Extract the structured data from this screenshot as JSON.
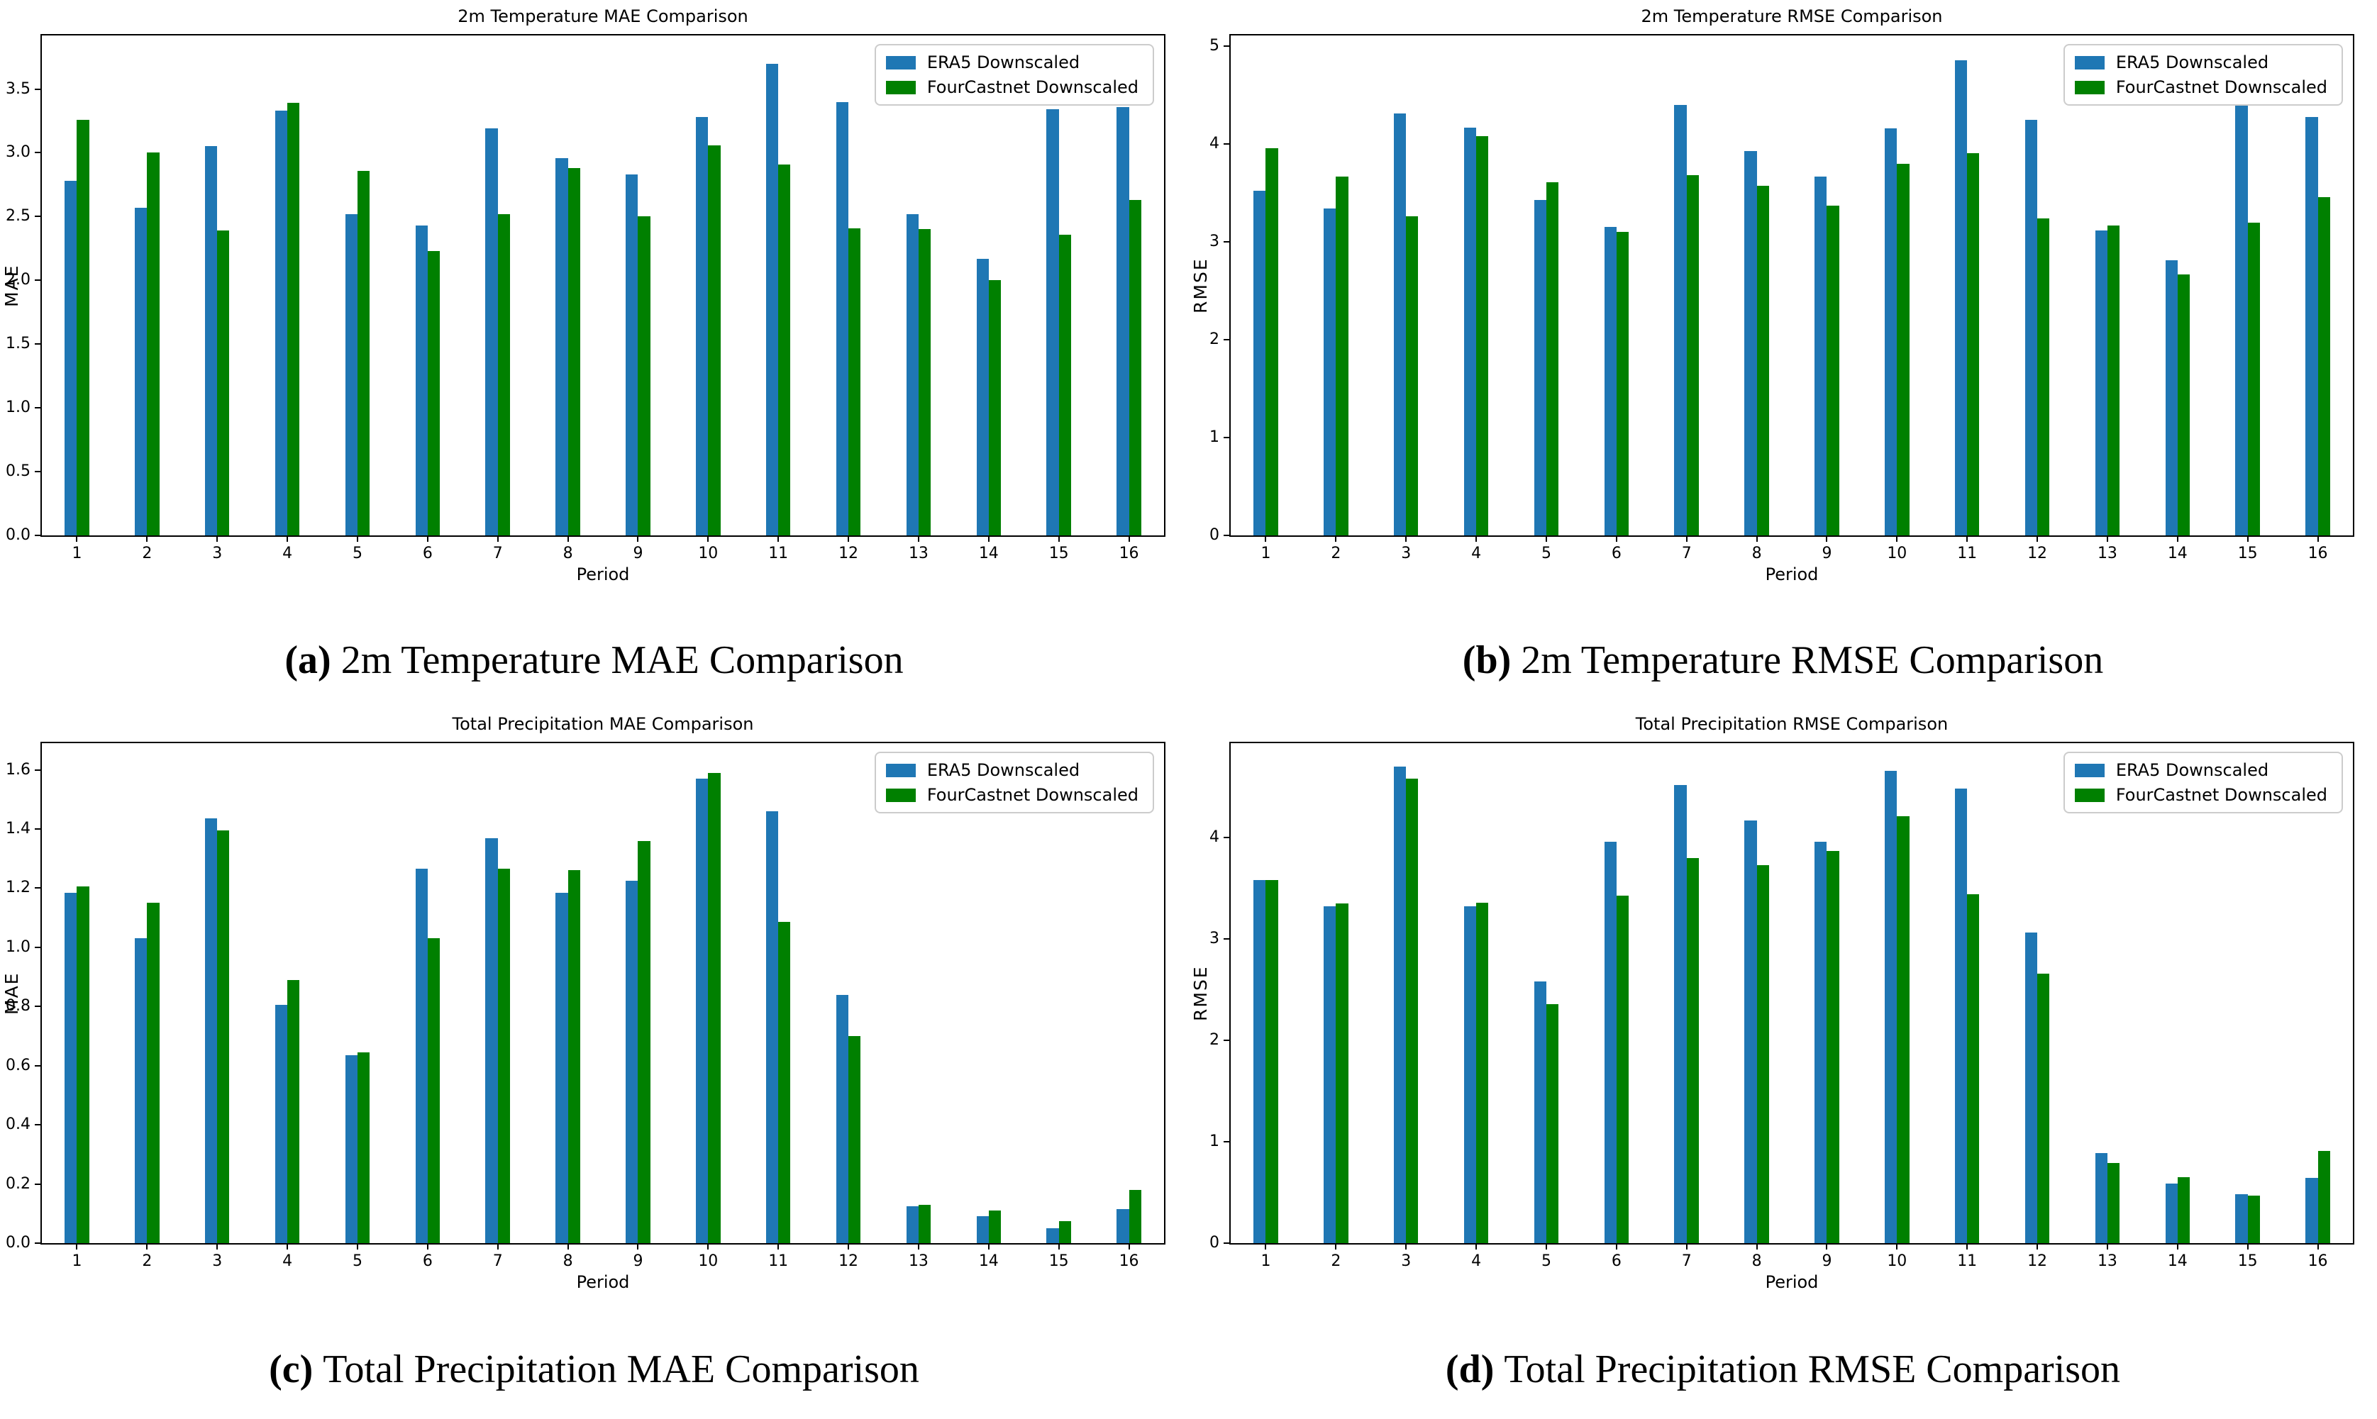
{
  "legend": {
    "items": [
      {
        "label": "ERA5 Downscaled",
        "color": "#1f77b4"
      },
      {
        "label": "FourCastnet Downscaled",
        "color": "#008000"
      }
    ],
    "position": "upper right"
  },
  "captions": [
    {
      "prefix": "(a)",
      "text": "2m Temperature MAE Comparison"
    },
    {
      "prefix": "(b)",
      "text": "2m Temperature RMSE Comparison"
    },
    {
      "prefix": "(c)",
      "text": "Total Precipitation MAE Comparison"
    },
    {
      "prefix": "(d)",
      "text": "Total Precipitation RMSE Comparison"
    }
  ],
  "chart_data": [
    {
      "type": "bar",
      "title": "2m Temperature MAE Comparison",
      "xlabel": "Period",
      "ylabel": "MAE",
      "grid": false,
      "legend_position": "upper right",
      "categories": [
        "1",
        "2",
        "3",
        "4",
        "5",
        "6",
        "7",
        "8",
        "9",
        "10",
        "11",
        "12",
        "13",
        "14",
        "15",
        "16"
      ],
      "ylim": [
        0,
        3.92
      ],
      "ytick_values": [
        0.0,
        0.5,
        1.0,
        1.5,
        2.0,
        2.5,
        3.0,
        3.5
      ],
      "ytick_labels": [
        "0.0",
        "0.5",
        "1.0",
        "1.5",
        "2.0",
        "2.5",
        "3.0",
        "3.5"
      ],
      "series": [
        {
          "name": "ERA5 Downscaled",
          "values": [
            2.78,
            2.57,
            3.05,
            3.33,
            2.52,
            2.43,
            3.19,
            2.96,
            2.83,
            3.28,
            3.7,
            3.4,
            2.52,
            2.17,
            3.34,
            3.36
          ]
        },
        {
          "name": "FourCastnet Downscaled",
          "values": [
            3.26,
            3.0,
            2.39,
            3.39,
            2.86,
            2.23,
            2.52,
            2.88,
            2.5,
            3.06,
            2.91,
            2.41,
            2.4,
            2.0,
            2.36,
            2.63
          ]
        }
      ]
    },
    {
      "type": "bar",
      "title": "2m Temperature RMSE Comparison",
      "xlabel": "Period",
      "ylabel": "RMSE",
      "grid": false,
      "legend_position": "upper right",
      "categories": [
        "1",
        "2",
        "3",
        "4",
        "5",
        "6",
        "7",
        "8",
        "9",
        "10",
        "11",
        "12",
        "13",
        "14",
        "15",
        "16"
      ],
      "ylim": [
        0,
        5.11
      ],
      "ytick_values": [
        0,
        1,
        2,
        3,
        4,
        5
      ],
      "ytick_labels": [
        "0",
        "1",
        "2",
        "3",
        "4",
        "5"
      ],
      "series": [
        {
          "name": "ERA5 Downscaled",
          "values": [
            3.52,
            3.34,
            4.31,
            4.17,
            3.43,
            3.15,
            4.4,
            3.93,
            3.67,
            4.16,
            4.86,
            4.25,
            3.12,
            2.81,
            4.57,
            4.28
          ]
        },
        {
          "name": "FourCastnet Downscaled",
          "values": [
            3.96,
            3.67,
            3.26,
            4.08,
            3.61,
            3.1,
            3.68,
            3.57,
            3.37,
            3.8,
            3.91,
            3.24,
            3.17,
            2.67,
            3.2,
            3.46
          ]
        }
      ]
    },
    {
      "type": "bar",
      "title": "Total Precipitation MAE Comparison",
      "xlabel": "Period",
      "ylabel": "MAE",
      "grid": false,
      "legend_position": "upper right",
      "categories": [
        "1",
        "2",
        "3",
        "4",
        "5",
        "6",
        "7",
        "8",
        "9",
        "10",
        "11",
        "12",
        "13",
        "14",
        "15",
        "16"
      ],
      "ylim": [
        0,
        1.69
      ],
      "ytick_values": [
        0.0,
        0.2,
        0.4,
        0.6,
        0.8,
        1.0,
        1.2,
        1.4,
        1.6
      ],
      "ytick_labels": [
        "0.0",
        "0.2",
        "0.4",
        "0.6",
        "0.8",
        "1.0",
        "1.2",
        "1.4",
        "1.6"
      ],
      "series": [
        {
          "name": "ERA5 Downscaled",
          "values": [
            1.185,
            1.03,
            1.435,
            0.805,
            0.635,
            1.265,
            1.37,
            1.185,
            1.225,
            1.57,
            1.46,
            0.84,
            0.125,
            0.09,
            0.05,
            0.115
          ]
        },
        {
          "name": "FourCastnet Downscaled",
          "values": [
            1.205,
            1.15,
            1.395,
            0.89,
            0.645,
            1.03,
            1.265,
            1.26,
            1.36,
            1.59,
            1.085,
            0.7,
            0.13,
            0.11,
            0.075,
            0.18
          ]
        }
      ]
    },
    {
      "type": "bar",
      "title": "Total Precipitation RMSE Comparison",
      "xlabel": "Period",
      "ylabel": "RMSE",
      "grid": false,
      "legend_position": "upper right",
      "categories": [
        "1",
        "2",
        "3",
        "4",
        "5",
        "6",
        "7",
        "8",
        "9",
        "10",
        "11",
        "12",
        "13",
        "14",
        "15",
        "16"
      ],
      "ylim": [
        0,
        4.93
      ],
      "ytick_values": [
        0,
        1,
        2,
        3,
        4
      ],
      "ytick_labels": [
        "0",
        "1",
        "2",
        "3",
        "4"
      ],
      "series": [
        {
          "name": "ERA5 Downscaled",
          "values": [
            3.58,
            3.32,
            4.7,
            3.32,
            2.58,
            3.96,
            4.52,
            4.17,
            3.96,
            4.66,
            4.48,
            3.06,
            0.89,
            0.59,
            0.48,
            0.64
          ]
        },
        {
          "name": "FourCastnet Downscaled",
          "values": [
            3.58,
            3.35,
            4.58,
            3.36,
            2.36,
            3.43,
            3.8,
            3.73,
            3.87,
            4.21,
            3.44,
            2.66,
            0.79,
            0.65,
            0.47,
            0.91
          ]
        }
      ]
    }
  ]
}
